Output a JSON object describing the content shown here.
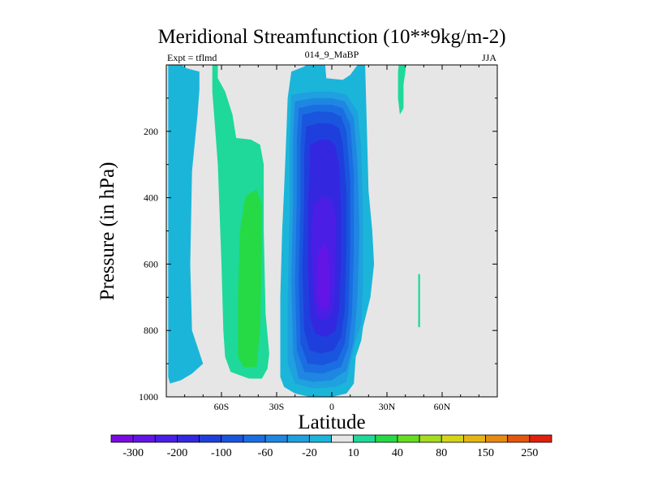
{
  "chart_data": {
    "type": "heatmap",
    "title": "Meridional Streamfunction (10**9kg/m-2)",
    "left_string": "Expt = tflmd",
    "center_string": "014_9_MaBP",
    "right_string": "JJA",
    "xlabel": "Latitude",
    "ylabel": "Pressure (in hPa)",
    "xlim": [
      -90,
      90
    ],
    "ylim": [
      1000,
      0
    ],
    "x_ticks": [
      {
        "value": -60,
        "label": "60S"
      },
      {
        "value": -30,
        "label": "30S"
      },
      {
        "value": 0,
        "label": "0"
      },
      {
        "value": 30,
        "label": "30N"
      },
      {
        "value": 60,
        "label": "60N"
      }
    ],
    "y_ticks": [
      {
        "value": 200,
        "label": "200"
      },
      {
        "value": 400,
        "label": "400"
      },
      {
        "value": 600,
        "label": "600"
      },
      {
        "value": 800,
        "label": "800"
      },
      {
        "value": 1000,
        "label": "1000"
      }
    ],
    "background_color": "#e6e6e6",
    "levels": [
      -300,
      -250,
      -200,
      -150,
      -100,
      -80,
      -60,
      -40,
      -20,
      -10,
      10,
      20,
      40,
      60,
      80,
      100,
      150,
      200,
      250,
      300
    ],
    "colorbar": {
      "colors": [
        "#7a0be0",
        "#6315e6",
        "#4b1ee6",
        "#3328e0",
        "#1f3fdd",
        "#1a55de",
        "#1a6ee2",
        "#1f86e2",
        "#1fa0df",
        "#1cb5da",
        "#e6e6e6",
        "#1ed99a",
        "#26da46",
        "#66dd22",
        "#a4dc1f",
        "#d4d418",
        "#e5b514",
        "#e68a12",
        "#e5550f",
        "#e0200c"
      ],
      "labels": [
        "-300",
        "-200",
        "-100",
        "-60",
        "-20",
        "10",
        "40",
        "80",
        "150",
        "250"
      ]
    },
    "regions": [
      {
        "name": "sh-subtropical-cell-outer",
        "value": -10,
        "color": "#1cb5da",
        "points": [
          [
            -89,
            -30
          ],
          [
            -79,
            10
          ],
          [
            -72,
            20
          ],
          [
            -72,
            75
          ],
          [
            -73,
            150
          ],
          [
            -76,
            320
          ],
          [
            -77,
            600
          ],
          [
            -76,
            800
          ],
          [
            -73,
            850
          ],
          [
            -70,
            900
          ],
          [
            -76,
            930
          ],
          [
            -82,
            950
          ],
          [
            -88,
            960
          ],
          [
            -89,
            940
          ]
        ]
      },
      {
        "name": "sh-cell-positive-10",
        "value": 10,
        "color": "#1ed99a",
        "points": [
          [
            -65,
            -30
          ],
          [
            -62,
            -30
          ],
          [
            -62,
            40
          ],
          [
            -58,
            80
          ],
          [
            -54,
            150
          ],
          [
            -52,
            220
          ],
          [
            -44,
            225
          ],
          [
            -39,
            240
          ],
          [
            -37,
            300
          ],
          [
            -37,
            500
          ],
          [
            -36,
            750
          ],
          [
            -34,
            870
          ],
          [
            -35,
            915
          ],
          [
            -38,
            945
          ],
          [
            -45,
            945
          ],
          [
            -50,
            935
          ],
          [
            -55,
            925
          ],
          [
            -58,
            880
          ],
          [
            -59,
            800
          ],
          [
            -60,
            600
          ],
          [
            -62,
            300
          ],
          [
            -64,
            150
          ],
          [
            -65,
            80
          ]
        ]
      },
      {
        "name": "sh-cell-positive-20",
        "value": 20,
        "color": "#26da46",
        "points": [
          [
            -47,
            395
          ],
          [
            -41,
            375
          ],
          [
            -38,
            420
          ],
          [
            -38,
            550
          ],
          [
            -39,
            800
          ],
          [
            -41,
            910
          ],
          [
            -48,
            910
          ],
          [
            -51,
            880
          ],
          [
            -51,
            700
          ],
          [
            -50,
            500
          ]
        ]
      },
      {
        "name": "hadley-cell-minus-10",
        "value": -10,
        "color": "#1cb5da",
        "points": [
          [
            -22,
            20
          ],
          [
            -15,
            5
          ],
          [
            -8,
            -30
          ],
          [
            -4,
            -30
          ],
          [
            -3,
            40
          ],
          [
            6,
            45
          ],
          [
            10,
            30
          ],
          [
            18,
            -30
          ],
          [
            19,
            180
          ],
          [
            20,
            380
          ],
          [
            22,
            500
          ],
          [
            23,
            600
          ],
          [
            21,
            700
          ],
          [
            17,
            790
          ],
          [
            16,
            830
          ],
          [
            13,
            880
          ],
          [
            12,
            960
          ],
          [
            8,
            990
          ],
          [
            0,
            1000
          ],
          [
            -12,
            1000
          ],
          [
            -20,
            990
          ],
          [
            -26,
            970
          ],
          [
            -28,
            940
          ],
          [
            -28,
            700
          ],
          [
            -27,
            500
          ],
          [
            -26,
            380
          ],
          [
            -25,
            250
          ],
          [
            -24,
            100
          ]
        ]
      },
      {
        "name": "hadley-cell-minus-20",
        "value": -20,
        "color": "#1fa0df",
        "points": [
          [
            -22,
            90
          ],
          [
            -10,
            80
          ],
          [
            0,
            80
          ],
          [
            8,
            90
          ],
          [
            14,
            140
          ],
          [
            16,
            250
          ],
          [
            17,
            450
          ],
          [
            17,
            650
          ],
          [
            16,
            780
          ],
          [
            13,
            830
          ],
          [
            10,
            900
          ],
          [
            8,
            955
          ],
          [
            2,
            970
          ],
          [
            -10,
            975
          ],
          [
            -20,
            960
          ],
          [
            -24,
            900
          ],
          [
            -24,
            700
          ],
          [
            -23,
            450
          ],
          [
            -23,
            250
          ]
        ]
      },
      {
        "name": "hadley-cell-minus-40",
        "value": -40,
        "color": "#1f86e2",
        "points": [
          [
            -20,
            110
          ],
          [
            -10,
            100
          ],
          [
            0,
            100
          ],
          [
            7,
            110
          ],
          [
            12,
            160
          ],
          [
            14,
            300
          ],
          [
            15,
            500
          ],
          [
            14,
            700
          ],
          [
            12,
            830
          ],
          [
            8,
            920
          ],
          [
            0,
            950
          ],
          [
            -10,
            955
          ],
          [
            -18,
            945
          ],
          [
            -21,
            870
          ],
          [
            -22,
            650
          ],
          [
            -21,
            400
          ],
          [
            -21,
            200
          ]
        ]
      },
      {
        "name": "hadley-cell-minus-60",
        "value": -60,
        "color": "#1a6ee2",
        "points": [
          [
            -18,
            130
          ],
          [
            -10,
            120
          ],
          [
            0,
            120
          ],
          [
            6,
            130
          ],
          [
            10,
            180
          ],
          [
            12,
            330
          ],
          [
            12,
            550
          ],
          [
            11,
            750
          ],
          [
            9,
            850
          ],
          [
            5,
            910
          ],
          [
            -5,
            930
          ],
          [
            -15,
            925
          ],
          [
            -19,
            860
          ],
          [
            -20,
            650
          ],
          [
            -19,
            400
          ],
          [
            -19,
            220
          ]
        ]
      },
      {
        "name": "hadley-cell-minus-80",
        "value": -80,
        "color": "#1a55de",
        "points": [
          [
            -16,
            150
          ],
          [
            -8,
            140
          ],
          [
            0,
            142
          ],
          [
            5,
            155
          ],
          [
            8,
            200
          ],
          [
            10,
            350
          ],
          [
            10,
            560
          ],
          [
            9,
            750
          ],
          [
            7,
            840
          ],
          [
            3,
            890
          ],
          [
            -5,
            905
          ],
          [
            -13,
            900
          ],
          [
            -17,
            840
          ],
          [
            -18,
            650
          ],
          [
            -17,
            400
          ],
          [
            -17,
            240
          ]
        ]
      },
      {
        "name": "hadley-cell-minus-100",
        "value": -100,
        "color": "#1f3fdd",
        "points": [
          [
            -14,
            185
          ],
          [
            -7,
            175
          ],
          [
            0,
            178
          ],
          [
            4,
            190
          ],
          [
            6,
            240
          ],
          [
            8,
            380
          ],
          [
            8,
            560
          ],
          [
            7,
            740
          ],
          [
            5,
            820
          ],
          [
            1,
            860
          ],
          [
            -6,
            870
          ],
          [
            -12,
            860
          ],
          [
            -15,
            800
          ],
          [
            -16,
            620
          ],
          [
            -15,
            400
          ],
          [
            -15,
            270
          ]
        ]
      },
      {
        "name": "hadley-cell-minus-150",
        "value": -150,
        "color": "#3328e0",
        "points": [
          [
            -12,
            240
          ],
          [
            -6,
            225
          ],
          [
            -1,
            225
          ],
          [
            2,
            245
          ],
          [
            4,
            300
          ],
          [
            5,
            420
          ],
          [
            5,
            600
          ],
          [
            4,
            740
          ],
          [
            2,
            800
          ],
          [
            -3,
            820
          ],
          [
            -9,
            810
          ],
          [
            -12,
            760
          ],
          [
            -13,
            600
          ],
          [
            -13,
            420
          ],
          [
            -12,
            310
          ]
        ]
      },
      {
        "name": "hadley-cell-minus-200",
        "value": -200,
        "color": "#4b1ee6",
        "points": [
          [
            -10,
            420
          ],
          [
            -5,
            395
          ],
          [
            0,
            405
          ],
          [
            2,
            450
          ],
          [
            2,
            600
          ],
          [
            1,
            730
          ],
          [
            -3,
            770
          ],
          [
            -8,
            760
          ],
          [
            -10,
            700
          ],
          [
            -11,
            550
          ]
        ]
      },
      {
        "name": "hadley-cell-minus-250",
        "value": -250,
        "color": "#6315e6",
        "points": [
          [
            -7,
            560
          ],
          [
            -4,
            540
          ],
          [
            -2,
            555
          ],
          [
            -1,
            620
          ],
          [
            -1,
            700
          ],
          [
            -3,
            740
          ],
          [
            -6,
            735
          ],
          [
            -8,
            700
          ],
          [
            -8,
            620
          ]
        ]
      },
      {
        "name": "nh-upper-positive-10",
        "value": 10,
        "color": "#1ed99a",
        "points": [
          [
            37,
            -30
          ],
          [
            41,
            -30
          ],
          [
            40,
            20
          ],
          [
            39,
            60
          ],
          [
            39,
            130
          ],
          [
            37,
            150
          ],
          [
            36,
            100
          ],
          [
            36,
            20
          ]
        ]
      },
      {
        "name": "nh-small-positive-10",
        "value": 10,
        "color": "#1ed99a",
        "points": [
          [
            47,
            630
          ],
          [
            48,
            630
          ],
          [
            48,
            790
          ],
          [
            47,
            790
          ]
        ]
      }
    ]
  }
}
